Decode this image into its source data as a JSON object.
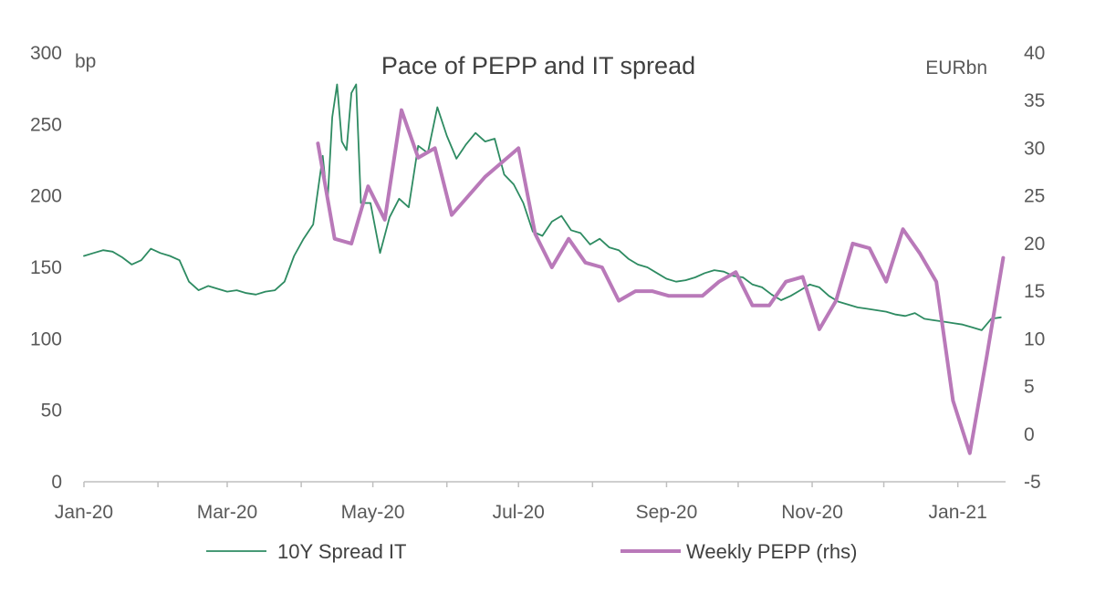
{
  "chart_data": {
    "type": "line",
    "title": "Pace of PEPP and IT  spread",
    "left_unit": "bp",
    "right_unit": "EURbn",
    "x_ticks": [
      "Jan-20",
      "Mar-20",
      "May-20",
      "Jul-20",
      "Sep-20",
      "Nov-20",
      "Jan-21"
    ],
    "x_range": [
      "2020-01-01",
      "2021-01-21"
    ],
    "y_left": {
      "min": 0,
      "max": 300,
      "ticks": [
        0,
        50,
        100,
        150,
        200,
        250,
        300
      ]
    },
    "y_right": {
      "min": -5,
      "max": 40,
      "ticks": [
        -5,
        0,
        5,
        10,
        15,
        20,
        25,
        30,
        35,
        40
      ]
    },
    "grid": false,
    "legend_position": "bottom",
    "colors": {
      "spread": "#2e8b62",
      "pepp": "#b979b9",
      "axis": "#bfbfbf"
    },
    "series": [
      {
        "name": "10Y Spread IT",
        "axis": "left",
        "points": [
          [
            "2020-01-01",
            158
          ],
          [
            "2020-01-05",
            160
          ],
          [
            "2020-01-09",
            162
          ],
          [
            "2020-01-13",
            161
          ],
          [
            "2020-01-17",
            157
          ],
          [
            "2020-01-21",
            152
          ],
          [
            "2020-01-25",
            155
          ],
          [
            "2020-01-29",
            163
          ],
          [
            "2020-02-02",
            160
          ],
          [
            "2020-02-06",
            158
          ],
          [
            "2020-02-10",
            155
          ],
          [
            "2020-02-14",
            140
          ],
          [
            "2020-02-18",
            134
          ],
          [
            "2020-02-22",
            137
          ],
          [
            "2020-02-26",
            135
          ],
          [
            "2020-03-01",
            133
          ],
          [
            "2020-03-05",
            134
          ],
          [
            "2020-03-09",
            132
          ],
          [
            "2020-03-13",
            131
          ],
          [
            "2020-03-17",
            133
          ],
          [
            "2020-03-21",
            134
          ],
          [
            "2020-03-25",
            140
          ],
          [
            "2020-03-29",
            158
          ],
          [
            "2020-04-02",
            170
          ],
          [
            "2020-04-06",
            180
          ],
          [
            "2020-04-10",
            228
          ],
          [
            "2020-04-12",
            195
          ],
          [
            "2020-04-14",
            255
          ],
          [
            "2020-04-16",
            278
          ],
          [
            "2020-04-18",
            238
          ],
          [
            "2020-04-20",
            232
          ],
          [
            "2020-04-22",
            272
          ],
          [
            "2020-04-24",
            278
          ],
          [
            "2020-04-26",
            195
          ],
          [
            "2020-04-30",
            195
          ],
          [
            "2020-05-04",
            160
          ],
          [
            "2020-05-08",
            185
          ],
          [
            "2020-05-12",
            198
          ],
          [
            "2020-05-16",
            192
          ],
          [
            "2020-05-20",
            235
          ],
          [
            "2020-05-24",
            230
          ],
          [
            "2020-05-28",
            262
          ],
          [
            "2020-06-01",
            242
          ],
          [
            "2020-06-05",
            226
          ],
          [
            "2020-06-09",
            236
          ],
          [
            "2020-06-13",
            244
          ],
          [
            "2020-06-17",
            238
          ],
          [
            "2020-06-21",
            240
          ],
          [
            "2020-06-25",
            215
          ],
          [
            "2020-06-29",
            208
          ],
          [
            "2020-07-03",
            195
          ],
          [
            "2020-07-07",
            175
          ],
          [
            "2020-07-11",
            172
          ],
          [
            "2020-07-15",
            182
          ],
          [
            "2020-07-19",
            186
          ],
          [
            "2020-07-23",
            176
          ],
          [
            "2020-07-27",
            174
          ],
          [
            "2020-07-31",
            166
          ],
          [
            "2020-08-04",
            170
          ],
          [
            "2020-08-08",
            164
          ],
          [
            "2020-08-12",
            162
          ],
          [
            "2020-08-16",
            156
          ],
          [
            "2020-08-20",
            152
          ],
          [
            "2020-08-24",
            150
          ],
          [
            "2020-08-28",
            146
          ],
          [
            "2020-09-01",
            142
          ],
          [
            "2020-09-05",
            140
          ],
          [
            "2020-09-09",
            141
          ],
          [
            "2020-09-13",
            143
          ],
          [
            "2020-09-17",
            146
          ],
          [
            "2020-09-21",
            148
          ],
          [
            "2020-09-25",
            147
          ],
          [
            "2020-09-29",
            144
          ],
          [
            "2020-10-03",
            143
          ],
          [
            "2020-10-07",
            138
          ],
          [
            "2020-10-11",
            136
          ],
          [
            "2020-10-15",
            131
          ],
          [
            "2020-10-19",
            127
          ],
          [
            "2020-10-23",
            130
          ],
          [
            "2020-10-27",
            134
          ],
          [
            "2020-10-31",
            138
          ],
          [
            "2020-11-04",
            136
          ],
          [
            "2020-11-08",
            130
          ],
          [
            "2020-11-12",
            126
          ],
          [
            "2020-11-16",
            124
          ],
          [
            "2020-11-20",
            122
          ],
          [
            "2020-11-24",
            121
          ],
          [
            "2020-11-28",
            120
          ],
          [
            "2020-12-02",
            119
          ],
          [
            "2020-12-06",
            117
          ],
          [
            "2020-12-10",
            116
          ],
          [
            "2020-12-14",
            118
          ],
          [
            "2020-12-18",
            114
          ],
          [
            "2020-12-22",
            113
          ],
          [
            "2020-12-26",
            112
          ],
          [
            "2020-12-30",
            111
          ],
          [
            "2021-01-03",
            110
          ],
          [
            "2021-01-07",
            108
          ],
          [
            "2021-01-11",
            106
          ],
          [
            "2021-01-15",
            114
          ],
          [
            "2021-01-19",
            115
          ]
        ]
      },
      {
        "name": "Weekly PEPP (rhs)",
        "axis": "right",
        "points": [
          [
            "2020-04-08",
            30.5
          ],
          [
            "2020-04-15",
            20.5
          ],
          [
            "2020-04-22",
            20.0
          ],
          [
            "2020-04-29",
            26.0
          ],
          [
            "2020-05-06",
            22.5
          ],
          [
            "2020-05-13",
            34.0
          ],
          [
            "2020-05-20",
            29.0
          ],
          [
            "2020-05-27",
            30.0
          ],
          [
            "2020-06-03",
            23.0
          ],
          [
            "2020-06-10",
            25.0
          ],
          [
            "2020-06-17",
            27.0
          ],
          [
            "2020-06-24",
            28.5
          ],
          [
            "2020-07-01",
            30.0
          ],
          [
            "2020-07-08",
            21.0
          ],
          [
            "2020-07-15",
            17.5
          ],
          [
            "2020-07-22",
            20.5
          ],
          [
            "2020-07-29",
            18.0
          ],
          [
            "2020-08-05",
            17.5
          ],
          [
            "2020-08-12",
            14.0
          ],
          [
            "2020-08-19",
            15.0
          ],
          [
            "2020-08-26",
            15.0
          ],
          [
            "2020-09-02",
            14.5
          ],
          [
            "2020-09-09",
            14.5
          ],
          [
            "2020-09-16",
            14.5
          ],
          [
            "2020-09-23",
            16.0
          ],
          [
            "2020-09-30",
            17.0
          ],
          [
            "2020-10-07",
            13.5
          ],
          [
            "2020-10-14",
            13.5
          ],
          [
            "2020-10-21",
            16.0
          ],
          [
            "2020-10-28",
            16.5
          ],
          [
            "2020-11-04",
            11.0
          ],
          [
            "2020-11-11",
            14.0
          ],
          [
            "2020-11-18",
            20.0
          ],
          [
            "2020-11-25",
            19.5
          ],
          [
            "2020-12-02",
            16.0
          ],
          [
            "2020-12-09",
            21.5
          ],
          [
            "2020-12-16",
            19.0
          ],
          [
            "2020-12-23",
            16.0
          ],
          [
            "2020-12-30",
            3.5
          ],
          [
            "2021-01-06",
            -2.0
          ],
          [
            "2021-01-13",
            8.0
          ],
          [
            "2021-01-20",
            18.5
          ]
        ]
      }
    ]
  }
}
